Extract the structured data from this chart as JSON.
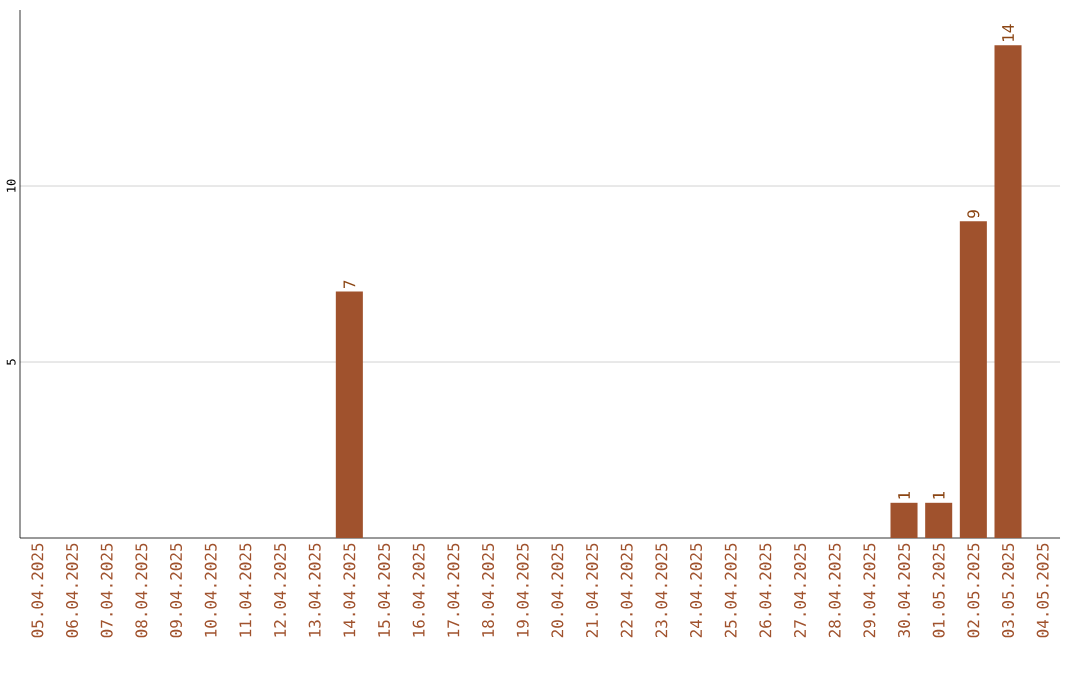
{
  "chart_data": {
    "type": "bar",
    "categories": [
      "05.04.2025",
      "06.04.2025",
      "07.04.2025",
      "08.04.2025",
      "09.04.2025",
      "10.04.2025",
      "11.04.2025",
      "12.04.2025",
      "13.04.2025",
      "14.04.2025",
      "15.04.2025",
      "16.04.2025",
      "17.04.2025",
      "18.04.2025",
      "19.04.2025",
      "20.04.2025",
      "21.04.2025",
      "22.04.2025",
      "23.04.2025",
      "24.04.2025",
      "25.04.2025",
      "26.04.2025",
      "27.04.2025",
      "28.04.2025",
      "29.04.2025",
      "30.04.2025",
      "01.05.2025",
      "02.05.2025",
      "03.05.2025",
      "04.05.2025"
    ],
    "values": [
      0,
      0,
      0,
      0,
      0,
      0,
      0,
      0,
      0,
      7,
      0,
      0,
      0,
      0,
      0,
      0,
      0,
      0,
      0,
      0,
      0,
      0,
      0,
      0,
      0,
      1,
      1,
      9,
      14,
      0
    ],
    "value_labels": [
      null,
      null,
      null,
      null,
      null,
      null,
      null,
      null,
      null,
      "7",
      null,
      null,
      null,
      null,
      null,
      null,
      null,
      null,
      null,
      null,
      null,
      null,
      null,
      null,
      null,
      "1",
      "1",
      "9",
      "14",
      null
    ],
    "color": "#a0522d",
    "ylim": [
      0,
      15
    ],
    "yticks": [
      5,
      10
    ],
    "grid": "y"
  }
}
